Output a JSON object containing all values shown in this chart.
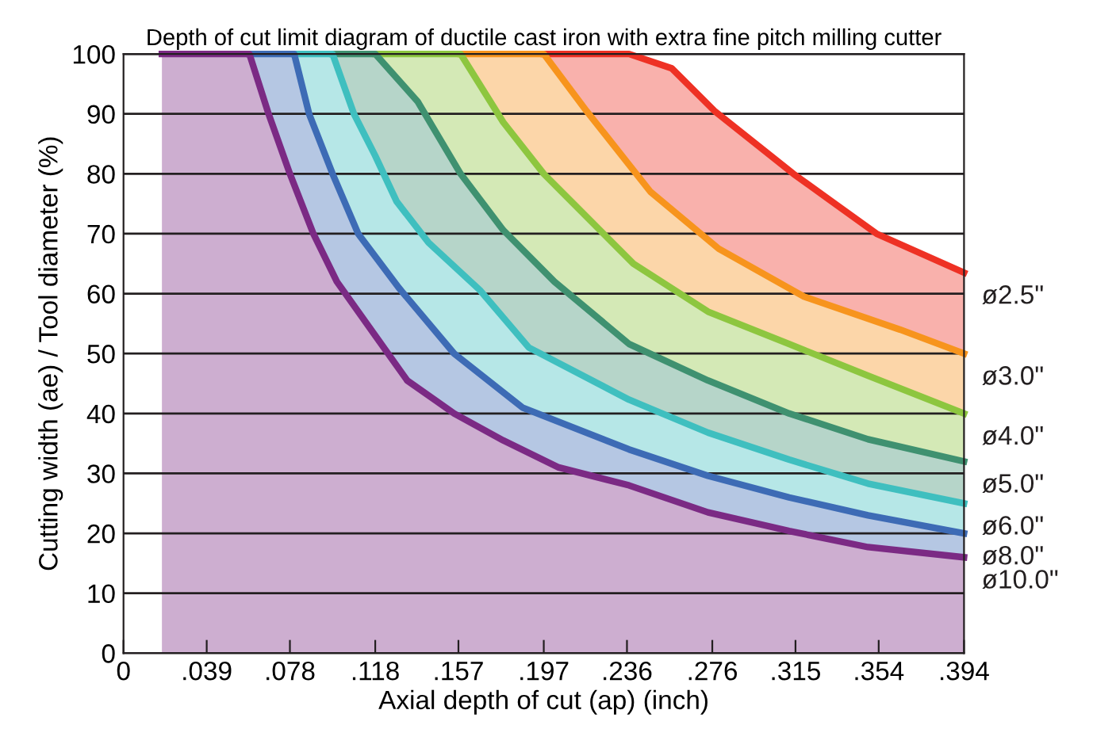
{
  "chart_data": {
    "type": "area",
    "title": "Depth of cut limit diagram of ductile cast iron with extra fine pitch milling cutter",
    "xlabel": "Axial depth of cut (ap) (inch)",
    "ylabel": "Cutting width (ae) / Tool diameter (%)",
    "xlim": [
      0,
      0.394
    ],
    "ylim": [
      0,
      100
    ],
    "xticks": [
      0,
      {
        "value": 0.039,
        "label": ".039"
      },
      {
        "value": 0.078,
        "label": ".078"
      },
      {
        "value": 0.118,
        "label": ".118"
      },
      {
        "value": 0.157,
        "label": ".157"
      },
      {
        "value": 0.197,
        "label": ".197"
      },
      {
        "value": 0.236,
        "label": ".236"
      },
      {
        "value": 0.276,
        "label": ".276"
      },
      {
        "value": 0.315,
        "label": ".315"
      },
      {
        "value": 0.354,
        "label": ".354"
      },
      {
        "value": 0.394,
        "label": ".394"
      }
    ],
    "yticks": [
      0,
      10,
      20,
      30,
      40,
      50,
      60,
      70,
      80,
      90,
      100
    ],
    "grid": "y",
    "legend": false,
    "marker": "none",
    "line_style": "solid",
    "series": [
      {
        "name": "ø2.5\"",
        "color": "#ee3124",
        "x": [
          0.197,
          0.237,
          0.257,
          0.277,
          0.314,
          0.353,
          0.394
        ],
        "values": [
          100,
          100,
          97.6,
          90.5,
          80,
          70,
          63.5
        ]
      },
      {
        "name": "ø3.0\"",
        "color": "#f7941d",
        "x": [
          0.158,
          0.197,
          0.217,
          0.247,
          0.279,
          0.319,
          0.364,
          0.394
        ],
        "values": [
          100,
          100,
          90.5,
          77,
          67.5,
          59.5,
          54,
          50
        ]
      },
      {
        "name": "ø4.0\"",
        "color": "#8dc63f",
        "x": [
          0.118,
          0.158,
          0.178,
          0.197,
          0.239,
          0.274,
          0.312,
          0.349,
          0.394
        ],
        "values": [
          100,
          100,
          88.6,
          80,
          65,
          57,
          51.6,
          46.3,
          40
        ]
      },
      {
        "name": "ø5.0\"",
        "color": "#3f9170",
        "x": [
          0.098,
          0.118,
          0.138,
          0.158,
          0.178,
          0.202,
          0.237,
          0.274,
          0.312,
          0.349,
          0.394
        ],
        "values": [
          100,
          100,
          92,
          80,
          70.6,
          62,
          51.6,
          45.5,
          40,
          35.7,
          32
        ]
      },
      {
        "name": "ø6.0\"",
        "color": "#3fbfbf",
        "x": [
          0.08,
          0.098,
          0.108,
          0.118,
          0.128,
          0.143,
          0.167,
          0.19,
          0.237,
          0.274,
          0.312,
          0.349,
          0.394
        ],
        "values": [
          100,
          100,
          90,
          83,
          75.4,
          68.5,
          60.6,
          51,
          42.3,
          36.8,
          32.3,
          28.3,
          25
        ]
      },
      {
        "name": "ø8.0\"",
        "color": "#3d6bb5",
        "x": [
          0.059,
          0.08,
          0.087,
          0.098,
          0.11,
          0.129,
          0.155,
          0.187,
          0.237,
          0.274,
          0.312,
          0.349,
          0.394
        ],
        "values": [
          100,
          100,
          90,
          80,
          70,
          61,
          50,
          41,
          34,
          29.6,
          26,
          23,
          20
        ]
      },
      {
        "name": "ø10.0\"",
        "color": "#7b2a84",
        "x": [
          0.018,
          0.059,
          0.068,
          0.078,
          0.089,
          0.1,
          0.118,
          0.133,
          0.155,
          0.178,
          0.204,
          0.237,
          0.274,
          0.312,
          0.349,
          0.394
        ],
        "values": [
          100,
          100,
          90,
          80,
          70,
          62,
          53,
          45.5,
          40,
          35.5,
          31,
          28,
          23.5,
          20.4,
          17.7,
          16
        ]
      }
    ]
  }
}
